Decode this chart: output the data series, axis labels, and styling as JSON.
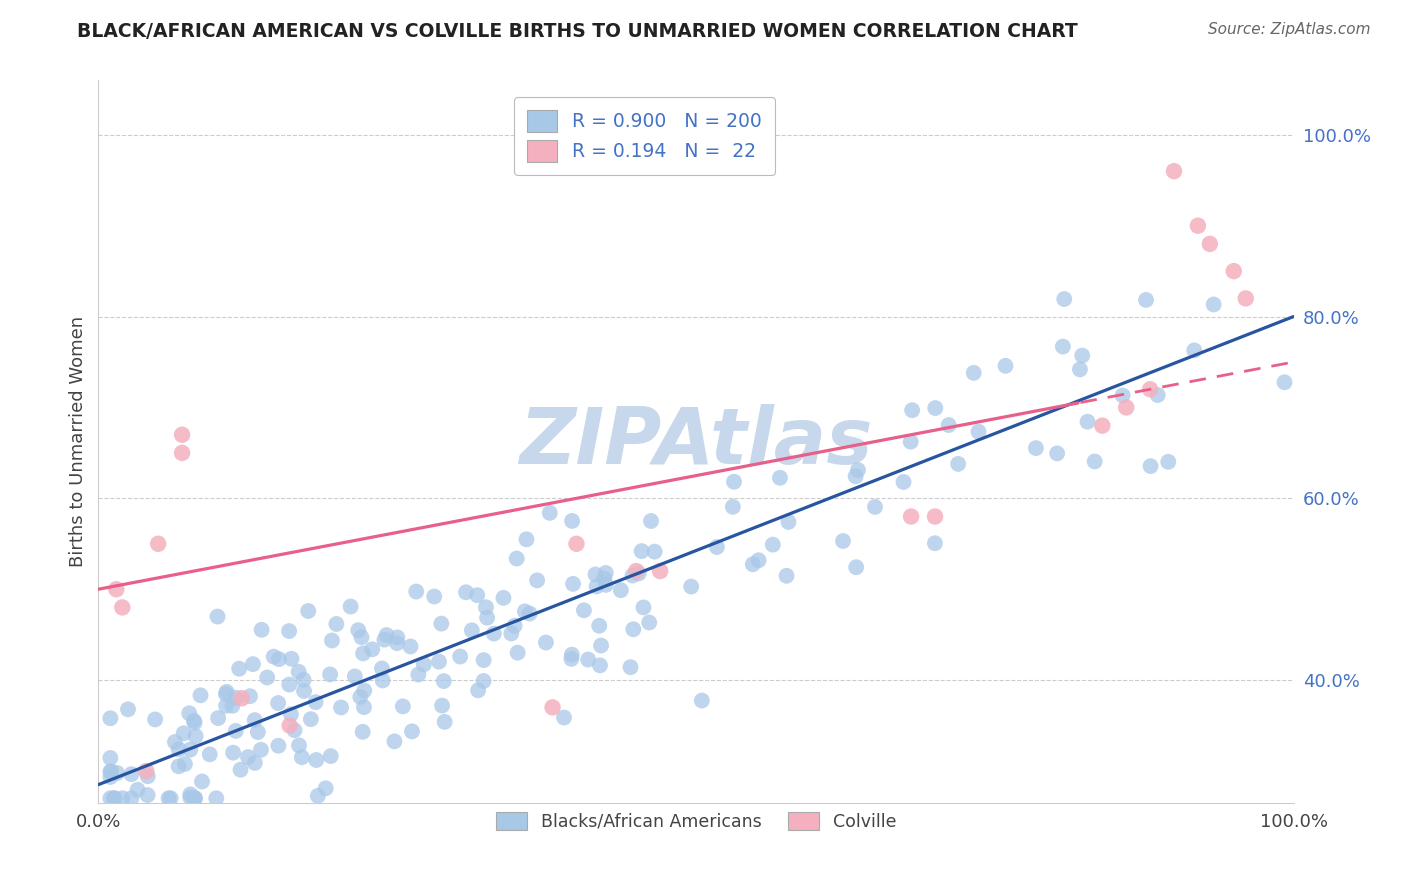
{
  "title": "BLACK/AFRICAN AMERICAN VS COLVILLE BIRTHS TO UNMARRIED WOMEN CORRELATION CHART",
  "source": "Source: ZipAtlas.com",
  "ylabel": "Births to Unmarried Women",
  "blue_R": 0.9,
  "blue_N": 200,
  "pink_R": 0.194,
  "pink_N": 22,
  "blue_color": "#A8C8E8",
  "pink_color": "#F4B0BE",
  "blue_line_color": "#2855A0",
  "pink_line_color": "#E8608A",
  "blue_legend_color": "#A8C8E8",
  "pink_legend_color": "#F4B0BE",
  "watermark_color": "#C8D8EC",
  "title_color": "#222222",
  "R_N_color": "#4472C4",
  "ytick_color": "#4472C4",
  "background_color": "#FFFFFF",
  "xmin": 0.0,
  "xmax": 1.0,
  "ymin": 0.265,
  "ymax": 1.06,
  "seed_blue": 7,
  "seed_pink": 3
}
